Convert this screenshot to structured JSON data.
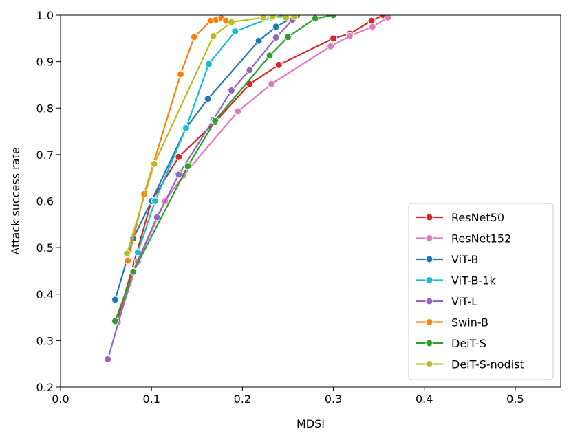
{
  "chart_data": {
    "type": "line",
    "title": "",
    "xlabel": "MDSI",
    "ylabel": "Attack success rate",
    "xlim": [
      0.0,
      0.55
    ],
    "ylim": [
      0.2,
      1.0
    ],
    "xticks": [
      "0.0",
      "0.1",
      "0.2",
      "0.3",
      "0.4",
      "0.5"
    ],
    "yticks": [
      "0.2",
      "0.3",
      "0.4",
      "0.5",
      "0.6",
      "0.7",
      "0.8",
      "0.9",
      "1.0"
    ],
    "grid": false,
    "legend_position": "lower-right",
    "series": [
      {
        "name": "ResNet50",
        "color": "#d62728",
        "x": [
          0.062,
          0.1,
          0.13,
          0.17,
          0.208,
          0.24,
          0.3,
          0.318,
          0.342,
          0.355
        ],
        "y": [
          0.34,
          0.6,
          0.695,
          0.77,
          0.852,
          0.893,
          0.95,
          0.96,
          0.988,
          1.0
        ]
      },
      {
        "name": "ResNet152",
        "color": "#e377c2",
        "x": [
          0.063,
          0.085,
          0.115,
          0.135,
          0.195,
          0.232,
          0.297,
          0.318,
          0.343,
          0.36
        ],
        "y": [
          0.34,
          0.47,
          0.6,
          0.655,
          0.793,
          0.852,
          0.933,
          0.955,
          0.975,
          0.995
        ]
      },
      {
        "name": "ViT-B",
        "color": "#1f77b4",
        "x": [
          0.06,
          0.08,
          0.1,
          0.138,
          0.162,
          0.218,
          0.237,
          0.26
        ],
        "y": [
          0.388,
          0.52,
          0.6,
          0.757,
          0.82,
          0.945,
          0.975,
          1.0
        ]
      },
      {
        "name": "ViT-B-1k",
        "color": "#17becf",
        "x": [
          0.085,
          0.104,
          0.138,
          0.163,
          0.192,
          0.232,
          0.25
        ],
        "y": [
          0.49,
          0.6,
          0.757,
          0.895,
          0.965,
          0.995,
          1.0
        ]
      },
      {
        "name": "ViT-L",
        "color": "#9467bd",
        "x": [
          0.052,
          0.08,
          0.106,
          0.13,
          0.168,
          0.188,
          0.208,
          0.237,
          0.255
        ],
        "y": [
          0.26,
          0.45,
          0.565,
          0.657,
          0.775,
          0.838,
          0.882,
          0.952,
          0.99
        ]
      },
      {
        "name": "Swin-B",
        "color": "#ff7f0e",
        "x": [
          0.074,
          0.092,
          0.132,
          0.147,
          0.165,
          0.171,
          0.177,
          0.182
        ],
        "y": [
          0.472,
          0.615,
          0.873,
          0.953,
          0.988,
          0.99,
          0.993,
          0.988
        ]
      },
      {
        "name": "DeiT-S",
        "color": "#2ca02c",
        "x": [
          0.06,
          0.08,
          0.14,
          0.17,
          0.23,
          0.25,
          0.28,
          0.3
        ],
        "y": [
          0.342,
          0.448,
          0.675,
          0.773,
          0.913,
          0.953,
          0.993,
          1.0
        ]
      },
      {
        "name": "DeiT-S-nodist",
        "color": "#bcbd22",
        "x": [
          0.073,
          0.103,
          0.168,
          0.188,
          0.223,
          0.233,
          0.248,
          0.257
        ],
        "y": [
          0.487,
          0.68,
          0.955,
          0.985,
          0.995,
          0.997,
          0.995,
          0.998
        ]
      }
    ]
  }
}
